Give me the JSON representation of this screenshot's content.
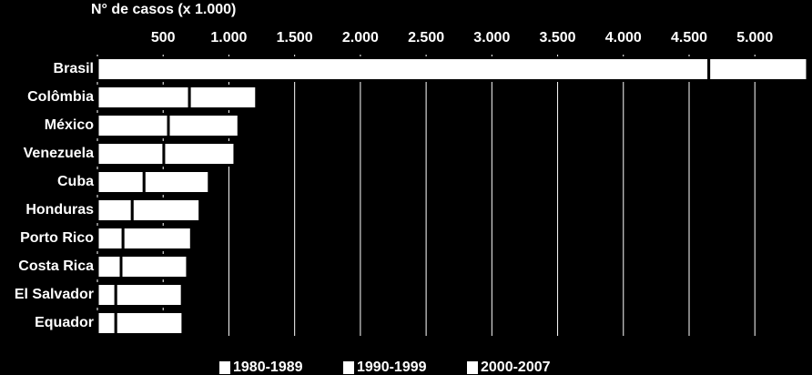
{
  "chart_data": {
    "type": "bar",
    "orientation": "horizontal",
    "stacked": true,
    "title": "N° de casos (x 1.000)",
    "categories": [
      "Brasil",
      "Colômbia",
      "México",
      "Venezuela",
      "Cuba",
      "Honduras",
      "Porto Rico",
      "Costa Rica",
      "El Salvador",
      "Equador"
    ],
    "series": [
      {
        "name": "1980-1989",
        "color": "#ffffff",
        "values": [
          4650,
          700,
          540,
          505,
          355,
          265,
          195,
          180,
          140,
          140
        ]
      },
      {
        "name": "1990-1999",
        "color": "#ffffff",
        "values": [
          750,
          510,
          535,
          540,
          495,
          515,
          520,
          505,
          505,
          510
        ]
      },
      {
        "name": "2000-2007",
        "color": "#ffffff",
        "values": [
          0,
          0,
          0,
          0,
          0,
          0,
          0,
          0,
          0,
          0
        ]
      }
    ],
    "xlim": [
      0,
      5400
    ],
    "xticks": [
      {
        "value": 500,
        "label": "500"
      },
      {
        "value": 1000,
        "label": "1.000"
      },
      {
        "value": 1500,
        "label": "1.500"
      },
      {
        "value": 2000,
        "label": "2.000"
      },
      {
        "value": 2500,
        "label": "2.500"
      },
      {
        "value": 3000,
        "label": "3.000"
      },
      {
        "value": 3500,
        "label": "3.500"
      },
      {
        "value": 4000,
        "label": "4.000"
      },
      {
        "value": 4500,
        "label": "4.500"
      },
      {
        "value": 5000,
        "label": "5.000"
      }
    ],
    "grid": true,
    "legend": "bottom"
  }
}
